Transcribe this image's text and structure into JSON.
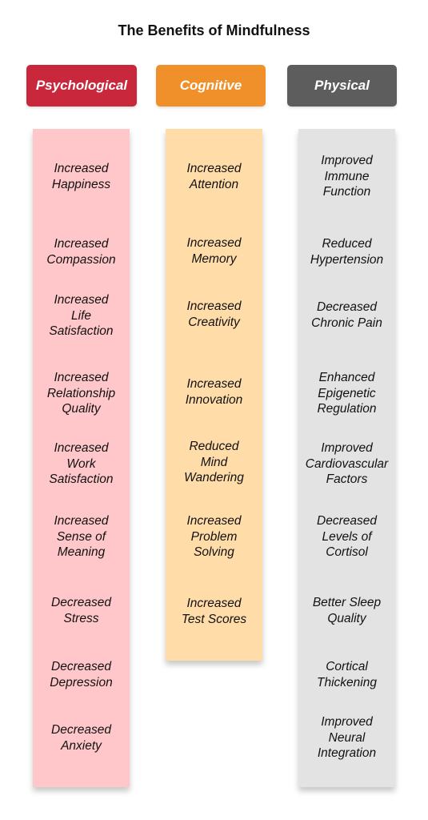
{
  "title": "The Benefits of Mindfulness",
  "colors": {
    "psychological_header": "#c9283c",
    "psychological_body": "#ffc7c9",
    "cognitive_header": "#f0902a",
    "cognitive_body": "#ffdca8",
    "physical_header": "#5d5d5d",
    "physical_body": "#e3e3e3"
  },
  "columns": [
    {
      "label": "Psychological",
      "items": [
        "Increased\nHappiness",
        "Increased\nCompassion",
        "Increased\nLife\nSatisfaction",
        "Increased\nRelationship\nQuality",
        "Increased\nWork\nSatisfaction",
        "Increased\nSense of\nMeaning",
        "Decreased\nStress",
        "Decreased\nDepression",
        "Decreased\nAnxiety"
      ]
    },
    {
      "label": "Cognitive",
      "items": [
        "Increased\nAttention",
        "Increased\nMemory",
        "Increased\nCreativity",
        "Increased\nInnovation",
        "Reduced\nMind\nWandering",
        "Increased\nProblem\nSolving",
        "Increased\nTest Scores"
      ]
    },
    {
      "label": "Physical",
      "items": [
        "Improved\nImmune\nFunction",
        "Reduced\nHypertension",
        "Decreased\nChronic Pain",
        "Enhanced\nEpigenetic\nRegulation",
        "Improved\nCardiovascular\nFactors",
        "Decreased\nLevels of\nCortisol",
        "Better Sleep\nQuality",
        "Cortical\nThickening",
        "Improved\nNeural\nIntegration"
      ]
    }
  ]
}
